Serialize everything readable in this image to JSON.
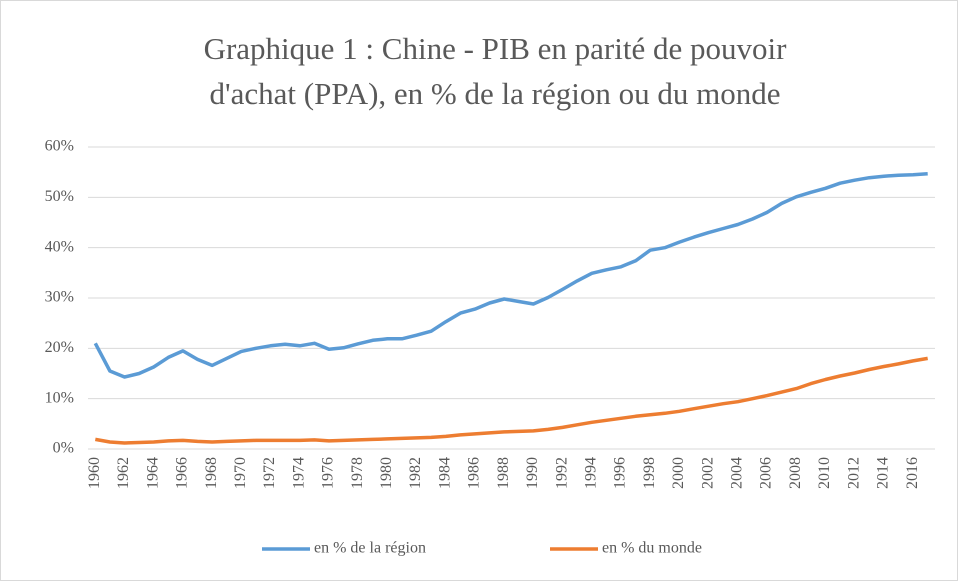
{
  "chart_data": {
    "type": "line",
    "title": [
      "Graphique 1 : Chine - PIB en parité de pouvoir",
      "d'achat (PPA), en % de la région ou du monde"
    ],
    "x": [
      1960,
      1961,
      1962,
      1963,
      1964,
      1965,
      1966,
      1967,
      1968,
      1969,
      1970,
      1971,
      1972,
      1973,
      1974,
      1975,
      1976,
      1977,
      1978,
      1979,
      1980,
      1981,
      1982,
      1983,
      1984,
      1985,
      1986,
      1987,
      1988,
      1989,
      1990,
      1991,
      1992,
      1993,
      1994,
      1995,
      1996,
      1997,
      1998,
      1999,
      2000,
      2001,
      2002,
      2003,
      2004,
      2005,
      2006,
      2007,
      2008,
      2009,
      2010,
      2011,
      2012,
      2013,
      2014,
      2015,
      2016,
      2017
    ],
    "series": [
      {
        "name": "en % de la région",
        "color": "#5b9bd5",
        "values": [
          21,
          15.5,
          14.3,
          15,
          16.3,
          18.2,
          19.5,
          17.8,
          16.6,
          18,
          19.4,
          20,
          20.5,
          20.8,
          20.5,
          21,
          19.8,
          20.1,
          20.9,
          21.6,
          21.9,
          21.9,
          22.6,
          23.4,
          25.3,
          27,
          27.8,
          29,
          29.8,
          29.3,
          28.8,
          30.1,
          31.7,
          33.4,
          34.9,
          35.6,
          36.2,
          37.4,
          39.5,
          40,
          41.1,
          42.1,
          43,
          43.8,
          44.6,
          45.7,
          47,
          48.8,
          50.1,
          51,
          51.8,
          52.8,
          53.4,
          53.9,
          54.2,
          54.4,
          54.5,
          54.7
        ]
      },
      {
        "name": "en % du monde",
        "color": "#ed7d31",
        "values": [
          1.9,
          1.4,
          1.2,
          1.3,
          1.4,
          1.6,
          1.7,
          1.5,
          1.4,
          1.5,
          1.6,
          1.7,
          1.7,
          1.7,
          1.7,
          1.8,
          1.6,
          1.7,
          1.8,
          1.9,
          2.0,
          2.1,
          2.2,
          2.3,
          2.5,
          2.8,
          3.0,
          3.2,
          3.4,
          3.5,
          3.6,
          3.9,
          4.3,
          4.8,
          5.3,
          5.7,
          6.1,
          6.5,
          6.8,
          7.1,
          7.5,
          8.0,
          8.5,
          9.0,
          9.4,
          10.0,
          10.6,
          11.3,
          12.0,
          13.0,
          13.8,
          14.5,
          15.1,
          15.8,
          16.4,
          16.9,
          17.5,
          18.0
        ]
      }
    ],
    "xlim": [
      1959.5,
      2017.5
    ],
    "xticks": [
      1960,
      1962,
      1964,
      1966,
      1968,
      1970,
      1972,
      1974,
      1976,
      1978,
      1980,
      1982,
      1984,
      1986,
      1988,
      1990,
      1992,
      1994,
      1996,
      1998,
      2000,
      2002,
      2004,
      2006,
      2008,
      2010,
      2012,
      2014,
      2016
    ],
    "ylim": [
      0,
      60
    ],
    "yticks": [
      {
        "value": 0,
        "label": "0%"
      },
      {
        "value": 10,
        "label": "10%"
      },
      {
        "value": 20,
        "label": "20%"
      },
      {
        "value": 30,
        "label": "30%"
      },
      {
        "value": 40,
        "label": "40%"
      },
      {
        "value": 50,
        "label": "50%"
      },
      {
        "value": 60,
        "label": "60%"
      }
    ],
    "grid": true,
    "legend": "bottom"
  }
}
